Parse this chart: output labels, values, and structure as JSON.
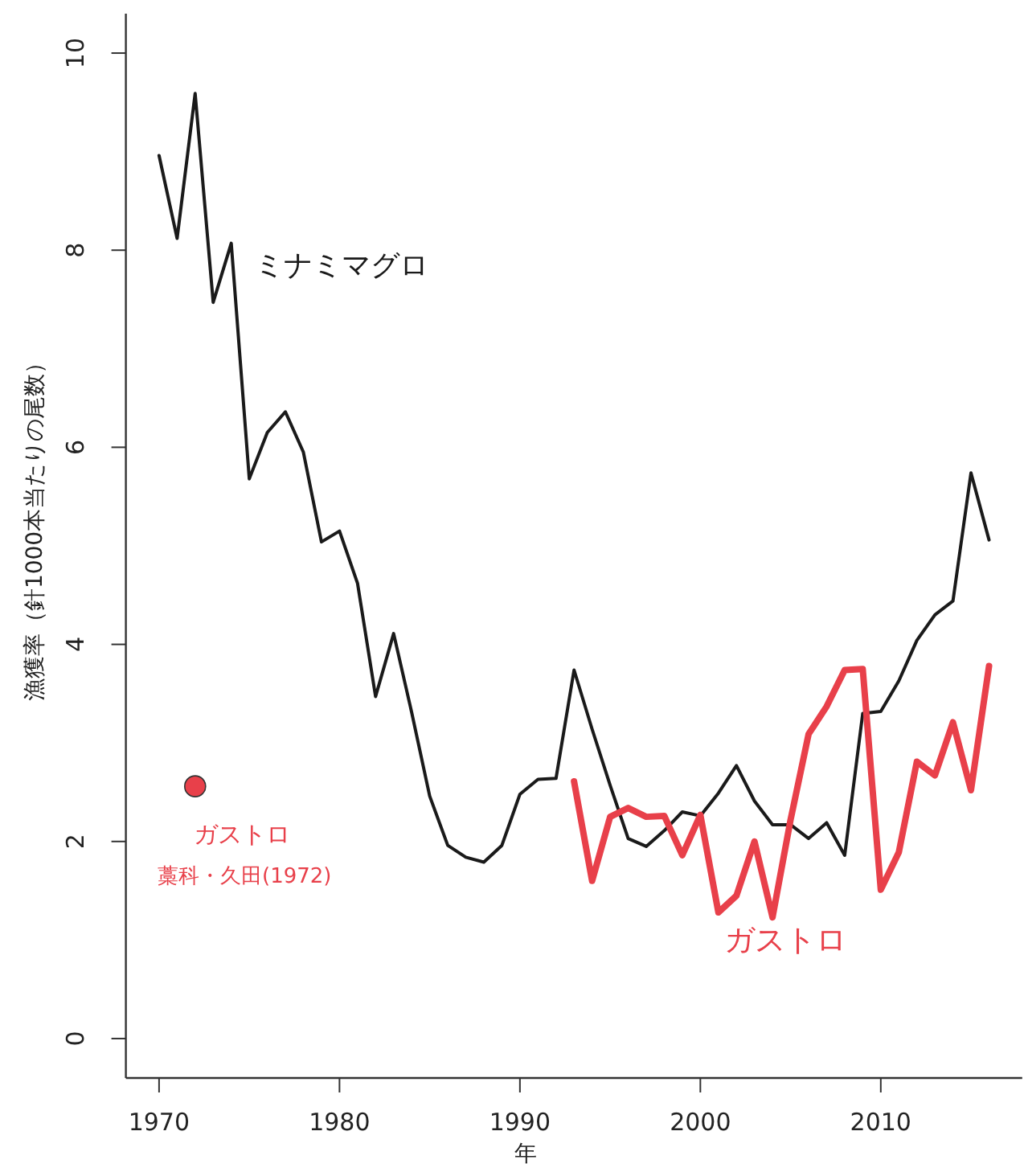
{
  "chart_data": {
    "type": "line",
    "xlabel": "年",
    "ylabel": "漁獲率（針1000本当たりの尾数）",
    "xlim": [
      1968.16,
      2017.84
    ],
    "ylim": [
      -0.4,
      10.4
    ],
    "xticks": [
      1970,
      1980,
      1990,
      2000,
      2010
    ],
    "yticks": [
      0,
      2,
      4,
      6,
      8,
      10
    ],
    "series": [
      {
        "name": "ミナミマグロ",
        "color": "#1a1a1a",
        "x": [
          1970,
          1971,
          1972,
          1973,
          1974,
          1975,
          1976,
          1977,
          1978,
          1979,
          1980,
          1981,
          1982,
          1983,
          1984,
          1985,
          1986,
          1987,
          1988,
          1989,
          1990,
          1991,
          1992,
          1993,
          1994,
          1995,
          1996,
          1997,
          1998,
          1999,
          2000,
          2001,
          2002,
          2003,
          2004,
          2005,
          2006,
          2007,
          2008,
          2009,
          2010,
          2011,
          2012,
          2013,
          2014,
          2015,
          2016
        ],
        "values": [
          8.96,
          8.12,
          9.59,
          7.47,
          8.07,
          5.68,
          6.15,
          6.36,
          5.95,
          5.04,
          5.15,
          4.62,
          3.47,
          4.11,
          3.31,
          2.46,
          1.96,
          1.84,
          1.79,
          1.96,
          2.48,
          2.63,
          2.64,
          3.74,
          3.14,
          2.57,
          2.03,
          1.95,
          2.11,
          2.3,
          2.26,
          2.49,
          2.77,
          2.41,
          2.17,
          2.17,
          2.03,
          2.19,
          1.86,
          3.3,
          3.32,
          3.63,
          4.04,
          4.3,
          4.44,
          5.74,
          5.06
        ]
      },
      {
        "name": "ガストロ",
        "color": "#e8404a",
        "x": [
          1993,
          1994,
          1995,
          1996,
          1997,
          1998,
          1999,
          2000,
          2001,
          2002,
          2003,
          2004,
          2005,
          2006,
          2007,
          2008,
          2009,
          2010,
          2011,
          2012,
          2013,
          2014,
          2015,
          2016
        ],
        "values": [
          2.61,
          1.6,
          2.25,
          2.34,
          2.25,
          2.26,
          1.86,
          2.27,
          1.28,
          1.45,
          2.0,
          1.23,
          2.22,
          3.09,
          3.37,
          3.74,
          3.75,
          1.51,
          1.89,
          2.81,
          2.67,
          3.21,
          2.52,
          3.78
        ]
      },
      {
        "name": "ガストロ",
        "type": "scatter",
        "marker": "circle",
        "color": "#e8404a",
        "x": [
          1972
        ],
        "values": [
          2.56
        ]
      }
    ],
    "annotations": [
      "藁科・久田(1972)"
    ]
  }
}
